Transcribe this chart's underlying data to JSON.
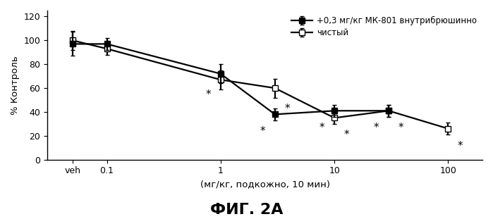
{
  "title": "ФИГ. 2А",
  "xlabel": "(мг/кг, подкожно, 10 мин)",
  "ylabel": "% Контроль",
  "ylim": [
    0,
    125
  ],
  "yticks": [
    0,
    20,
    40,
    60,
    80,
    100,
    120
  ],
  "series1_label": "+0,3 мг/кг МК-801 внутрибрюшинно",
  "series2_label": "чистый",
  "x_log_values": [
    0.05,
    0.1,
    1.0,
    3.0,
    10.0,
    30.0,
    100.0
  ],
  "x_tickpositions": [
    0.05,
    0.1,
    1.0,
    10.0,
    100.0
  ],
  "x_ticklabels": [
    "veh",
    "0.1",
    "1",
    "10",
    "100"
  ],
  "xlim": [
    0.03,
    200.0
  ],
  "series1_y": [
    97,
    97,
    72,
    38,
    41,
    41,
    null
  ],
  "series1_yerr": [
    10,
    5,
    8,
    5,
    5,
    5,
    null
  ],
  "series2_y": [
    100,
    93,
    67,
    60,
    35,
    41,
    26
  ],
  "series2_yerr": [
    8,
    5,
    8,
    8,
    5,
    5,
    5
  ],
  "asterisk_series1_idx": [
    2,
    3,
    4,
    5
  ],
  "asterisk_series2_idx": [
    3,
    4,
    5,
    6
  ],
  "line_color": "#000000",
  "marker_size": 6,
  "linewidth": 1.6,
  "font_size_title": 16,
  "font_size_label": 9.5,
  "font_size_tick": 9,
  "font_size_legend": 8.5
}
